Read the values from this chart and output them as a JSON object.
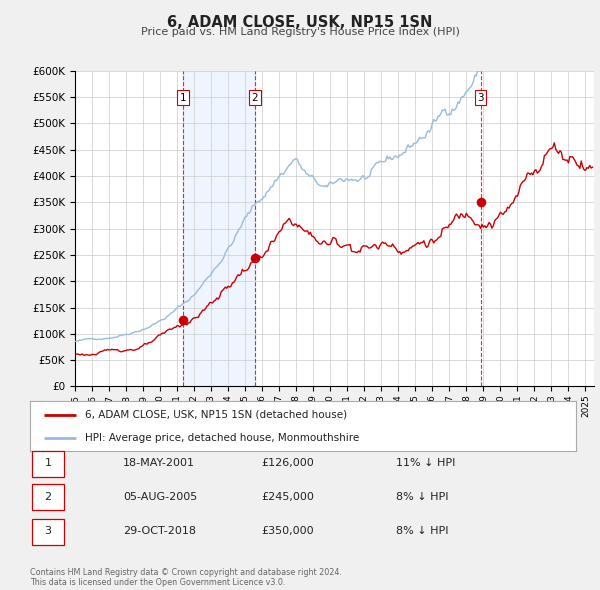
{
  "title": "6, ADAM CLOSE, USK, NP15 1SN",
  "subtitle": "Price paid vs. HM Land Registry's House Price Index (HPI)",
  "legend_label_red": "6, ADAM CLOSE, USK, NP15 1SN (detached house)",
  "legend_label_blue": "HPI: Average price, detached house, Monmouthshire",
  "footer_line1": "Contains HM Land Registry data © Crown copyright and database right 2024.",
  "footer_line2": "This data is licensed under the Open Government Licence v3.0.",
  "transactions": [
    {
      "num": 1,
      "date": "18-MAY-2001",
      "price": 126000,
      "pct": "11%",
      "dir": "↓",
      "x_year": 2001.37
    },
    {
      "num": 2,
      "date": "05-AUG-2005",
      "price": 245000,
      "pct": "8%",
      "dir": "↓",
      "x_year": 2005.58
    },
    {
      "num": 3,
      "date": "29-OCT-2018",
      "price": 350000,
      "pct": "8%",
      "dir": "↓",
      "x_year": 2018.83
    }
  ],
  "vline_color": "#cc0000",
  "shade_color": "#ddeeff",
  "dot_color": "#cc0000",
  "red_line_color": "#cc0000",
  "blue_line_color": "#99bbdd",
  "ylim": [
    0,
    600000
  ],
  "yticks": [
    0,
    50000,
    100000,
    150000,
    200000,
    250000,
    300000,
    350000,
    400000,
    450000,
    500000,
    550000,
    600000
  ],
  "xlim_start": 1995.0,
  "xlim_end": 2025.5,
  "xticks": [
    1995,
    1996,
    1997,
    1998,
    1999,
    2000,
    2001,
    2002,
    2003,
    2004,
    2005,
    2006,
    2007,
    2008,
    2009,
    2010,
    2011,
    2012,
    2013,
    2014,
    2015,
    2016,
    2017,
    2018,
    2019,
    2020,
    2021,
    2022,
    2023,
    2024,
    2025
  ],
  "bg_color": "#f0f0f0",
  "plot_bg_color": "#ffffff",
  "grid_color": "#cccccc"
}
